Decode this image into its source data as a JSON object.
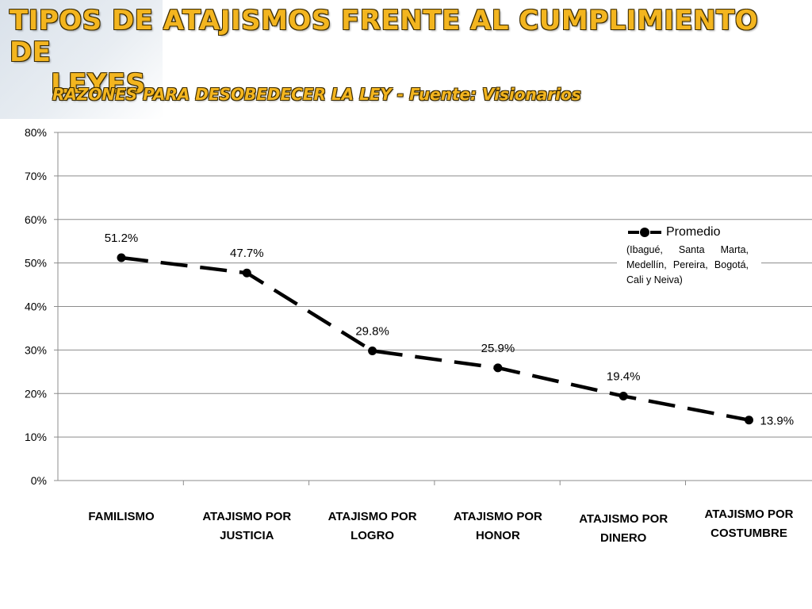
{
  "header": {
    "title_line1": "TIPOS DE ATAJISMOS FRENTE AL CUMPLIMIENTO DE",
    "title_line2": "LEYES",
    "subtitle": "RAZONES PARA DESOBEDECER LA LEY -  Fuente: Visionarios"
  },
  "legend": {
    "name": "Promedio",
    "note": "(Ibagué, Santa Marta, Medellín, Pereira, Bogotá, Cali y Neiva)"
  },
  "chart_data": {
    "type": "line",
    "categories": [
      "FAMILISMO",
      "ATAJISMO POR JUSTICIA",
      "ATAJISMO POR LOGRO",
      "ATAJISMO POR HONOR",
      "ATAJISMO POR DINERO",
      "ATAJISMO POR COSTUMBRE"
    ],
    "series": [
      {
        "name": "Promedio",
        "values": [
          51.2,
          47.7,
          29.8,
          25.9,
          19.4,
          13.9
        ]
      }
    ],
    "data_labels": [
      "51.2%",
      "47.7%",
      "29.8%",
      "25.9%",
      "19.4%",
      "13.9%"
    ],
    "y_ticks": [
      "0%",
      "10%",
      "20%",
      "30%",
      "40%",
      "50%",
      "60%",
      "70%",
      "80%"
    ],
    "ylim": [
      0,
      80
    ],
    "grid": true,
    "line_style": "dashed",
    "color": "#000000",
    "legend_position": "right"
  }
}
